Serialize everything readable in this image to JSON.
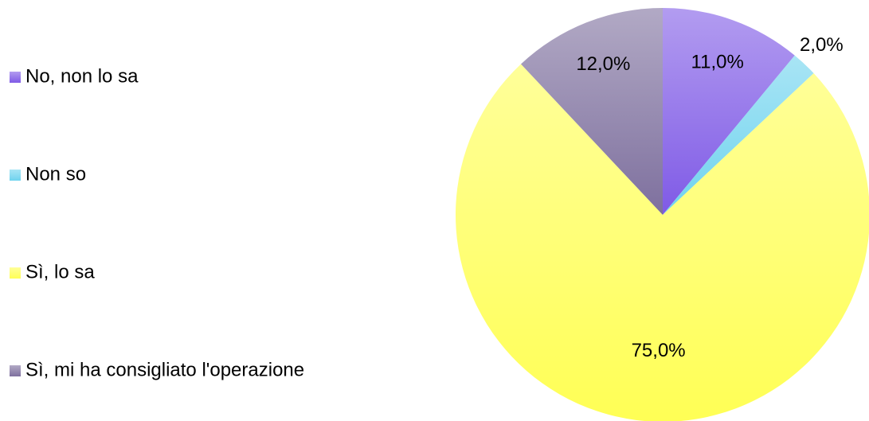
{
  "chart_data": {
    "type": "pie",
    "categories": [
      "No, non lo sa",
      "Non so",
      "Sì, lo sa",
      "Sì, mi ha consigliato l'operazione"
    ],
    "values": [
      11,
      2,
      75,
      12
    ],
    "value_labels": [
      "11,0%",
      "2,0%",
      "75,0%",
      "12,0%"
    ],
    "colors": [
      "#7f5ae6",
      "#6fd3ee",
      "#ffff55",
      "#7e709e"
    ]
  }
}
